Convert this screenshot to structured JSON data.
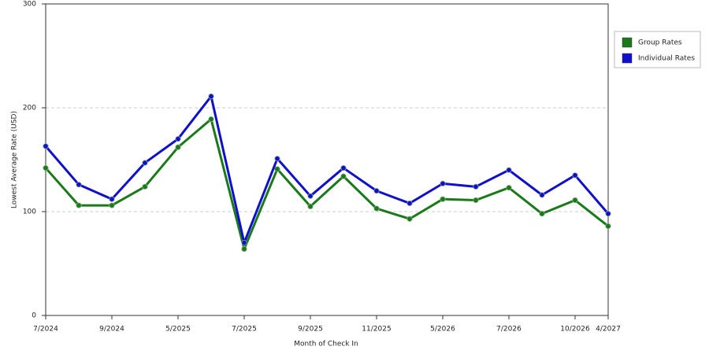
{
  "chart_data": {
    "type": "line",
    "x_label": "Month of Check In",
    "y_label": "Lowest Average Rate (USD)",
    "categories": [
      "7/2024",
      null,
      "9/2024",
      null,
      "5/2025",
      null,
      "7/2025",
      null,
      "9/2025",
      null,
      "11/2025",
      null,
      "5/2026",
      null,
      "7/2026",
      null,
      "10/2026",
      "4/2027"
    ],
    "series": [
      {
        "name": "Group Rates",
        "color": "#1a7a1a",
        "values": [
          142,
          106,
          106,
          124,
          162,
          189,
          64,
          141,
          105,
          134,
          103,
          93,
          112,
          111,
          123,
          98,
          111,
          86
        ]
      },
      {
        "name": "Individual Rates",
        "color": "#1010cc",
        "values": [
          163,
          126,
          112,
          147,
          170,
          211,
          70,
          151,
          115,
          142,
          120,
          108,
          127,
          124,
          140,
          116,
          135,
          98
        ]
      }
    ],
    "ylim": [
      0,
      300
    ],
    "yticks": [
      0,
      100,
      200,
      300
    ],
    "grid": true,
    "legend": "right"
  }
}
